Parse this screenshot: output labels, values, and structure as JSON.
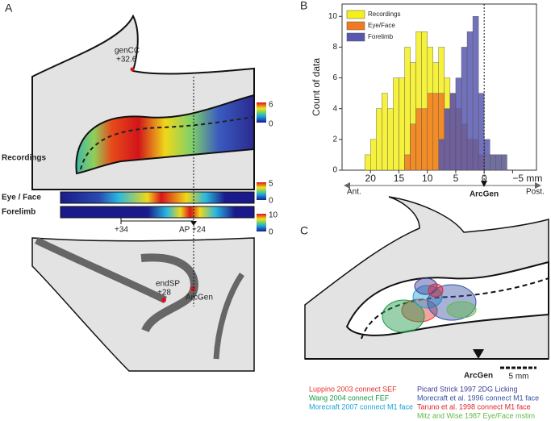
{
  "panel_labels": [
    "A",
    "B",
    "C"
  ],
  "panel_a": {
    "gencc": "genCC",
    "gencc_ap": "+32.6",
    "recordings": "Recordings",
    "eye_face": "Eye / Face",
    "forelimb": "Forelimb",
    "ap_left": "+34",
    "ap_right": "AP +24",
    "endsp": "endSP",
    "endsp_ap": "+28",
    "arcgen": "ArcGen",
    "colorbars": [
      {
        "max": 6,
        "min": 0
      },
      {
        "max": 5,
        "min": 0
      },
      {
        "max": 10,
        "min": 0
      }
    ]
  },
  "chart_data": {
    "type": "histogram",
    "y_label": "Count of data",
    "bins": [
      21,
      20,
      19,
      18,
      17,
      16,
      15,
      14,
      13,
      12,
      11,
      10,
      9,
      8,
      7,
      6,
      5,
      4,
      3,
      2,
      1,
      0,
      -1,
      -2,
      -3,
      -4,
      -5
    ],
    "series": [
      {
        "name": "Recordings",
        "color": "#f5ef1a",
        "values": [
          1,
          2,
          4,
          5,
          4,
          6,
          6,
          8,
          7,
          9,
          9,
          8,
          7,
          8,
          6,
          4,
          4,
          3,
          2,
          2,
          1,
          1,
          1,
          1,
          1,
          0
        ]
      },
      {
        "name": "Eye/Face",
        "color": "#f07a22",
        "values": [
          0,
          0,
          0,
          0,
          0,
          0,
          0,
          1,
          3,
          4,
          4,
          5,
          5,
          5,
          4,
          5,
          4,
          3,
          2,
          2,
          1,
          0,
          0,
          0,
          0,
          0
        ]
      },
      {
        "name": "Forelimb",
        "color": "#5858b0",
        "values": [
          0,
          0,
          0,
          0,
          0,
          0,
          0,
          0,
          0,
          0,
          0,
          0,
          0,
          2,
          4,
          5,
          6,
          8,
          9,
          10,
          5,
          2,
          1,
          1,
          1,
          0
        ]
      }
    ],
    "xlim": [
      25,
      -9.2
    ],
    "ylim": [
      0,
      10.8
    ],
    "xticks": [
      20,
      15,
      10,
      5,
      0,
      {
        "value": -5,
        "label": "−5 mm"
      }
    ],
    "yticks": [
      0,
      2,
      4,
      6,
      8,
      10
    ],
    "annotations": {
      "anterior": "Ant.",
      "arcgen": "ArcGen",
      "posterior": "Post."
    }
  },
  "panel_c": {
    "arcgen": "ArcGen",
    "scale": "5 mm",
    "legend": [
      {
        "text": "Luppino 2003 connect SEF",
        "color": "#e8322a"
      },
      {
        "text": "Wang 2004 connect FEF",
        "color": "#1a9a46"
      },
      {
        "text": "Morecraft 2007 connect M1 face",
        "color": "#1aa3d9"
      },
      {
        "text": "Picard Strick 1997 2DG Licking",
        "color": "#3b3b99"
      },
      {
        "text": "Morecraft et al. 1996 connect M1 face",
        "color": "#3a55a5"
      },
      {
        "text": "Taruno et al. 1998 connect M1 face",
        "color": "#e0262f"
      },
      {
        "text": "Mitz and Wise 1987 Eye/Face mstim",
        "color": "#5fb946"
      }
    ]
  }
}
